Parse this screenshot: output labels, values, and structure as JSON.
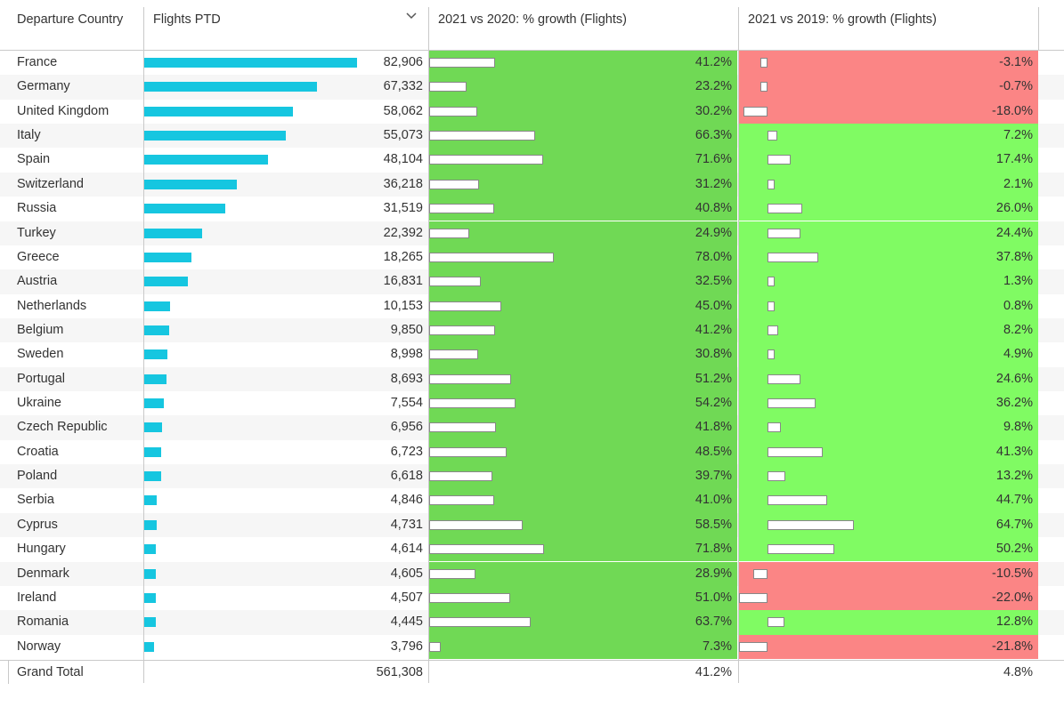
{
  "headers": {
    "country": "Departure Country",
    "flights": "Flights PTD",
    "growth_2020": "2021 vs 2020: % growth (Flights)",
    "growth_2019": "2021 vs 2019: % growth (Flights)"
  },
  "colors": {
    "bar": "#16c6e0",
    "green_dark": "#70d955",
    "green_light": "#80fb63",
    "red": "#fb8585"
  },
  "rows": [
    {
      "country": "France",
      "flights": "82,906",
      "flights_value": 82906,
      "g2020": "41.2%",
      "g2020_value": 41.2,
      "g2019": "-3.1%",
      "g2019_value": -3.1
    },
    {
      "country": "Germany",
      "flights": "67,332",
      "flights_value": 67332,
      "g2020": "23.2%",
      "g2020_value": 23.2,
      "g2019": "-0.7%",
      "g2019_value": -0.7
    },
    {
      "country": "United Kingdom",
      "flights": "58,062",
      "flights_value": 58062,
      "g2020": "30.2%",
      "g2020_value": 30.2,
      "g2019": "-18.0%",
      "g2019_value": -18.0
    },
    {
      "country": "Italy",
      "flights": "55,073",
      "flights_value": 55073,
      "g2020": "66.3%",
      "g2020_value": 66.3,
      "g2019": "7.2%",
      "g2019_value": 7.2
    },
    {
      "country": "Spain",
      "flights": "48,104",
      "flights_value": 48104,
      "g2020": "71.6%",
      "g2020_value": 71.6,
      "g2019": "17.4%",
      "g2019_value": 17.4
    },
    {
      "country": "Switzerland",
      "flights": "36,218",
      "flights_value": 36218,
      "g2020": "31.2%",
      "g2020_value": 31.2,
      "g2019": "2.1%",
      "g2019_value": 2.1
    },
    {
      "country": "Russia",
      "flights": "31,519",
      "flights_value": 31519,
      "g2020": "40.8%",
      "g2020_value": 40.8,
      "g2019": "26.0%",
      "g2019_value": 26.0
    },
    {
      "country": "Turkey",
      "flights": "22,392",
      "flights_value": 22392,
      "g2020": "24.9%",
      "g2020_value": 24.9,
      "g2019": "24.4%",
      "g2019_value": 24.4
    },
    {
      "country": "Greece",
      "flights": "18,265",
      "flights_value": 18265,
      "g2020": "78.0%",
      "g2020_value": 78.0,
      "g2019": "37.8%",
      "g2019_value": 37.8
    },
    {
      "country": "Austria",
      "flights": "16,831",
      "flights_value": 16831,
      "g2020": "32.5%",
      "g2020_value": 32.5,
      "g2019": "1.3%",
      "g2019_value": 1.3
    },
    {
      "country": "Netherlands",
      "flights": "10,153",
      "flights_value": 10153,
      "g2020": "45.0%",
      "g2020_value": 45.0,
      "g2019": "0.8%",
      "g2019_value": 0.8
    },
    {
      "country": "Belgium",
      "flights": "9,850",
      "flights_value": 9850,
      "g2020": "41.2%",
      "g2020_value": 41.2,
      "g2019": "8.2%",
      "g2019_value": 8.2
    },
    {
      "country": "Sweden",
      "flights": "8,998",
      "flights_value": 8998,
      "g2020": "30.8%",
      "g2020_value": 30.8,
      "g2019": "4.9%",
      "g2019_value": 4.9
    },
    {
      "country": "Portugal",
      "flights": "8,693",
      "flights_value": 8693,
      "g2020": "51.2%",
      "g2020_value": 51.2,
      "g2019": "24.6%",
      "g2019_value": 24.6
    },
    {
      "country": "Ukraine",
      "flights": "7,554",
      "flights_value": 7554,
      "g2020": "54.2%",
      "g2020_value": 54.2,
      "g2019": "36.2%",
      "g2019_value": 36.2
    },
    {
      "country": "Czech Republic",
      "flights": "6,956",
      "flights_value": 6956,
      "g2020": "41.8%",
      "g2020_value": 41.8,
      "g2019": "9.8%",
      "g2019_value": 9.8
    },
    {
      "country": "Croatia",
      "flights": "6,723",
      "flights_value": 6723,
      "g2020": "48.5%",
      "g2020_value": 48.5,
      "g2019": "41.3%",
      "g2019_value": 41.3
    },
    {
      "country": "Poland",
      "flights": "6,618",
      "flights_value": 6618,
      "g2020": "39.7%",
      "g2020_value": 39.7,
      "g2019": "13.2%",
      "g2019_value": 13.2
    },
    {
      "country": "Serbia",
      "flights": "4,846",
      "flights_value": 4846,
      "g2020": "41.0%",
      "g2020_value": 41.0,
      "g2019": "44.7%",
      "g2019_value": 44.7
    },
    {
      "country": "Cyprus",
      "flights": "4,731",
      "flights_value": 4731,
      "g2020": "58.5%",
      "g2020_value": 58.5,
      "g2019": "64.7%",
      "g2019_value": 64.7
    },
    {
      "country": "Hungary",
      "flights": "4,614",
      "flights_value": 4614,
      "g2020": "71.8%",
      "g2020_value": 71.8,
      "g2019": "50.2%",
      "g2019_value": 50.2
    },
    {
      "country": "Denmark",
      "flights": "4,605",
      "flights_value": 4605,
      "g2020": "28.9%",
      "g2020_value": 28.9,
      "g2019": "-10.5%",
      "g2019_value": -10.5
    },
    {
      "country": "Ireland",
      "flights": "4,507",
      "flights_value": 4507,
      "g2020": "51.0%",
      "g2020_value": 51.0,
      "g2019": "-22.0%",
      "g2019_value": -22.0
    },
    {
      "country": "Romania",
      "flights": "4,445",
      "flights_value": 4445,
      "g2020": "63.7%",
      "g2020_value": 63.7,
      "g2019": "12.8%",
      "g2019_value": 12.8
    },
    {
      "country": "Norway",
      "flights": "3,796",
      "flights_value": 3796,
      "g2020": "7.3%",
      "g2020_value": 7.3,
      "g2019": "-21.8%",
      "g2019_value": -21.8
    }
  ],
  "total": {
    "label": "Grand Total",
    "flights": "561,308",
    "g2020": "41.2%",
    "g2019": "4.8%"
  }
}
